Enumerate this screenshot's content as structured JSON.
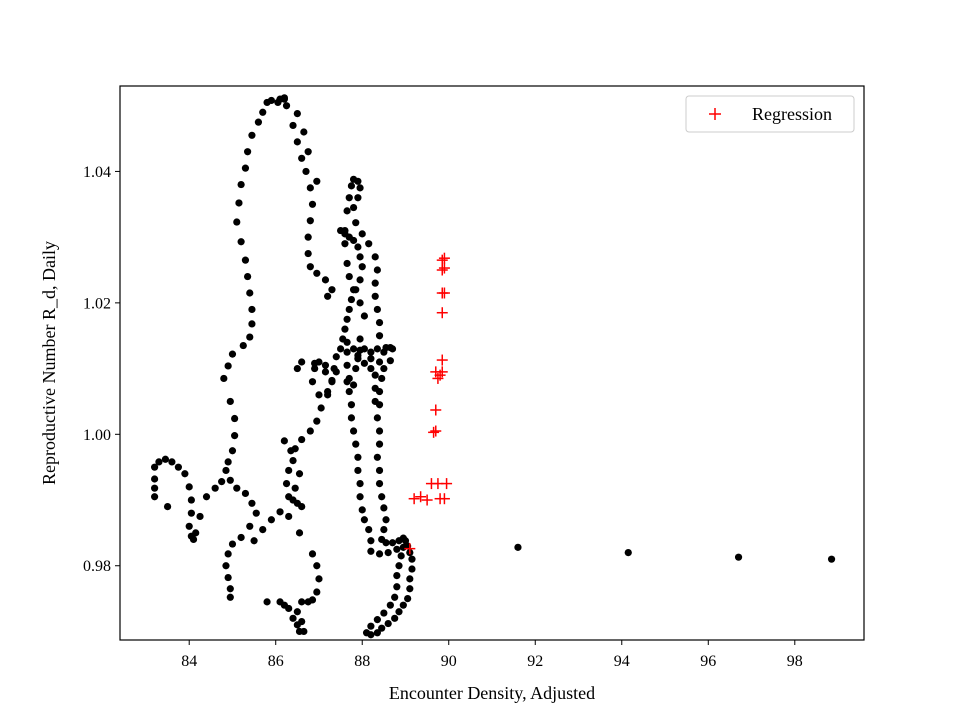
{
  "chart_data": {
    "type": "scatter",
    "title": "",
    "xlabel": "Encounter Density, Adjusted",
    "ylabel": "Reproductive Number R_d, Daily",
    "xlim": [
      82.4,
      99.6
    ],
    "ylim": [
      0.9687,
      1.053
    ],
    "x_ticks": [
      84,
      86,
      88,
      90,
      92,
      94,
      96,
      98
    ],
    "y_ticks": [
      0.98,
      1.0,
      1.02,
      1.04
    ],
    "x_tick_labels": [
      "84",
      "86",
      "88",
      "90",
      "92",
      "94",
      "96",
      "98"
    ],
    "y_tick_labels": [
      "0.98",
      "1.00",
      "1.02",
      "1.04"
    ],
    "grid": false,
    "legend_position": "top-right",
    "legend": [
      "Regression"
    ],
    "series": [
      {
        "marker": "dot",
        "color": "#000000",
        "points": [
          [
            86.1,
            1.051
          ],
          [
            86.2,
            1.0512
          ],
          [
            85.9,
            1.0508
          ],
          [
            85.8,
            1.0505
          ],
          [
            85.7,
            1.049
          ],
          [
            85.6,
            1.0475
          ],
          [
            85.45,
            1.0455
          ],
          [
            85.35,
            1.043
          ],
          [
            85.3,
            1.0405
          ],
          [
            85.2,
            1.038
          ],
          [
            85.15,
            1.0352
          ],
          [
            85.1,
            1.0323
          ],
          [
            85.2,
            1.0293
          ],
          [
            85.3,
            1.0265
          ],
          [
            85.35,
            1.024
          ],
          [
            85.4,
            1.0215
          ],
          [
            85.45,
            1.019
          ],
          [
            85.45,
            1.0168
          ],
          [
            85.4,
            1.0148
          ],
          [
            85.25,
            1.0135
          ],
          [
            85.0,
            1.0122
          ],
          [
            84.9,
            1.0104
          ],
          [
            84.8,
            1.0085
          ],
          [
            84.95,
            1.005
          ],
          [
            85.05,
            1.0024
          ],
          [
            85.05,
            0.9998
          ],
          [
            85.0,
            0.9975
          ],
          [
            84.9,
            0.9958
          ],
          [
            84.85,
            0.9945
          ],
          [
            84.95,
            0.993
          ],
          [
            85.1,
            0.9918
          ],
          [
            85.3,
            0.991
          ],
          [
            85.45,
            0.9895
          ],
          [
            85.55,
            0.988
          ],
          [
            85.4,
            0.986
          ],
          [
            85.2,
            0.9843
          ],
          [
            85.0,
            0.9833
          ],
          [
            84.9,
            0.9818
          ],
          [
            84.85,
            0.98
          ],
          [
            84.9,
            0.9782
          ],
          [
            84.95,
            0.9765
          ],
          [
            84.95,
            0.9752
          ],
          [
            83.2,
            0.995
          ],
          [
            83.2,
            0.9932
          ],
          [
            83.2,
            0.9918
          ],
          [
            83.2,
            0.9905
          ],
          [
            83.3,
            0.9958
          ],
          [
            83.45,
            0.9962
          ],
          [
            83.6,
            0.9958
          ],
          [
            83.75,
            0.995
          ],
          [
            83.9,
            0.994
          ],
          [
            84.0,
            0.992
          ],
          [
            84.05,
            0.99
          ],
          [
            84.05,
            0.988
          ],
          [
            84.0,
            0.986
          ],
          [
            84.05,
            0.9845
          ],
          [
            84.1,
            0.984
          ],
          [
            84.15,
            0.985
          ],
          [
            84.25,
            0.9875
          ],
          [
            84.4,
            0.9905
          ],
          [
            84.6,
            0.9918
          ],
          [
            84.75,
            0.9928
          ],
          [
            83.5,
            0.989
          ],
          [
            86.1,
            0.9745
          ],
          [
            86.2,
            0.974
          ],
          [
            86.3,
            0.9735
          ],
          [
            86.4,
            0.972
          ],
          [
            86.5,
            0.971
          ],
          [
            86.55,
            0.97
          ],
          [
            86.65,
            0.97
          ],
          [
            86.6,
            0.9715
          ],
          [
            86.5,
            0.973
          ],
          [
            86.6,
            0.9745
          ],
          [
            86.75,
            0.9745
          ],
          [
            86.85,
            0.9748
          ],
          [
            86.95,
            0.976
          ],
          [
            87.0,
            0.978
          ],
          [
            86.95,
            0.98
          ],
          [
            86.85,
            0.9818
          ],
          [
            86.55,
            0.985
          ],
          [
            86.3,
            0.9875
          ],
          [
            86.1,
            0.9882
          ],
          [
            85.9,
            0.987
          ],
          [
            85.7,
            0.9855
          ],
          [
            85.5,
            0.9838
          ],
          [
            85.8,
            0.9745
          ],
          [
            86.4,
            0.996
          ],
          [
            86.3,
            0.9945
          ],
          [
            86.25,
            0.9925
          ],
          [
            86.3,
            0.9905
          ],
          [
            86.4,
            0.99
          ],
          [
            86.5,
            0.9895
          ],
          [
            86.6,
            0.989
          ],
          [
            86.45,
            0.9918
          ],
          [
            86.55,
            0.994
          ],
          [
            86.35,
            0.9975
          ],
          [
            86.2,
            0.999
          ],
          [
            86.45,
            0.9978
          ],
          [
            86.6,
            0.9992
          ],
          [
            86.8,
            1.0005
          ],
          [
            86.95,
            1.002
          ],
          [
            87.05,
            1.004
          ],
          [
            87.2,
            1.006
          ],
          [
            87.3,
            1.008
          ],
          [
            87.15,
            1.0095
          ],
          [
            86.9,
            1.0108
          ],
          [
            86.6,
            1.011
          ],
          [
            86.5,
            1.01
          ],
          [
            87.2,
            1.021
          ],
          [
            87.3,
            1.022
          ],
          [
            87.15,
            1.0235
          ],
          [
            86.95,
            1.0245
          ],
          [
            86.8,
            1.0255
          ],
          [
            86.75,
            1.0275
          ],
          [
            86.75,
            1.03
          ],
          [
            86.8,
            1.0325
          ],
          [
            86.85,
            1.035
          ],
          [
            86.8,
            1.0375
          ],
          [
            86.7,
            1.04
          ],
          [
            86.6,
            1.042
          ],
          [
            86.5,
            1.0445
          ],
          [
            86.4,
            1.047
          ],
          [
            86.25,
            1.05
          ],
          [
            86.05,
            1.0505
          ],
          [
            86.2,
            1.051
          ],
          [
            86.5,
            1.0488
          ],
          [
            86.65,
            1.046
          ],
          [
            86.75,
            1.043
          ],
          [
            86.95,
            1.0385
          ],
          [
            87.5,
            1.031
          ],
          [
            87.6,
            1.0305
          ],
          [
            87.7,
            1.03
          ],
          [
            87.8,
            1.0295
          ],
          [
            87.9,
            1.0285
          ],
          [
            87.95,
            1.027
          ],
          [
            88.0,
            1.0255
          ],
          [
            87.95,
            1.0235
          ],
          [
            87.85,
            1.022
          ],
          [
            87.75,
            1.0205
          ],
          [
            87.7,
            1.019
          ],
          [
            87.65,
            1.0175
          ],
          [
            87.6,
            1.016
          ],
          [
            87.55,
            1.0145
          ],
          [
            87.5,
            1.013
          ],
          [
            87.4,
            1.0118
          ],
          [
            87.35,
            1.01
          ],
          [
            87.3,
            1.0082
          ],
          [
            87.2,
            1.0065
          ],
          [
            87.0,
            1.006
          ],
          [
            86.85,
            1.008
          ],
          [
            86.9,
            1.01
          ],
          [
            87.0,
            1.011
          ],
          [
            87.15,
            1.0105
          ],
          [
            87.4,
            1.0095
          ],
          [
            87.65,
            1.008
          ],
          [
            87.8,
            1.0075
          ],
          [
            87.85,
            1.01
          ],
          [
            87.9,
            1.012
          ],
          [
            87.95,
            1.0145
          ],
          [
            88.05,
            1.018
          ],
          [
            87.95,
            1.02
          ],
          [
            87.8,
            1.022
          ],
          [
            87.7,
            1.024
          ],
          [
            87.65,
            1.026
          ],
          [
            87.6,
            1.029
          ],
          [
            87.6,
            1.031
          ],
          [
            87.65,
            1.034
          ],
          [
            87.7,
            1.036
          ],
          [
            87.75,
            1.0378
          ],
          [
            87.8,
            1.0388
          ],
          [
            87.9,
            1.0385
          ],
          [
            87.95,
            1.0375
          ],
          [
            87.9,
            1.036
          ],
          [
            87.8,
            1.0345
          ],
          [
            87.85,
            1.0322
          ],
          [
            88.0,
            1.0305
          ],
          [
            88.15,
            1.029
          ],
          [
            88.3,
            1.027
          ],
          [
            88.35,
            1.025
          ],
          [
            88.3,
            1.023
          ],
          [
            88.3,
            1.021
          ],
          [
            88.35,
            1.019
          ],
          [
            88.4,
            1.017
          ],
          [
            88.4,
            1.015
          ],
          [
            88.35,
            1.013
          ],
          [
            88.2,
            1.0125
          ],
          [
            88.05,
            1.013
          ],
          [
            87.95,
            1.0128
          ],
          [
            88.2,
            1.0115
          ],
          [
            88.4,
            1.011
          ],
          [
            88.5,
            1.0125
          ],
          [
            88.55,
            1.0132
          ],
          [
            88.65,
            1.0132
          ],
          [
            88.7,
            1.013
          ],
          [
            88.65,
            1.0112
          ],
          [
            88.5,
            1.01
          ],
          [
            88.45,
            1.0085
          ],
          [
            88.4,
            1.0065
          ],
          [
            88.4,
            1.0045
          ],
          [
            88.35,
            1.0025
          ],
          [
            88.4,
            1.0005
          ],
          [
            88.4,
            0.9985
          ],
          [
            88.35,
            0.9965
          ],
          [
            88.4,
            0.9945
          ],
          [
            88.4,
            0.9925
          ],
          [
            88.45,
            0.9905
          ],
          [
            88.5,
            0.9888
          ],
          [
            88.55,
            0.987
          ],
          [
            88.5,
            0.9855
          ],
          [
            88.45,
            0.984
          ],
          [
            88.55,
            0.9835
          ],
          [
            88.7,
            0.9835
          ],
          [
            88.85,
            0.9838
          ],
          [
            88.95,
            0.9842
          ],
          [
            89.05,
            0.983
          ],
          [
            89.1,
            0.982
          ],
          [
            89.15,
            0.981
          ],
          [
            89.15,
            0.9795
          ],
          [
            89.1,
            0.978
          ],
          [
            89.1,
            0.9765
          ],
          [
            89.05,
            0.975
          ],
          [
            88.95,
            0.974
          ],
          [
            88.85,
            0.973
          ],
          [
            88.75,
            0.972
          ],
          [
            88.6,
            0.9712
          ],
          [
            88.45,
            0.9705
          ],
          [
            88.35,
            0.9698
          ],
          [
            88.2,
            0.9695
          ],
          [
            88.1,
            0.9698
          ],
          [
            88.2,
            0.9708
          ],
          [
            88.35,
            0.9718
          ],
          [
            88.5,
            0.9728
          ],
          [
            88.65,
            0.974
          ],
          [
            88.75,
            0.9752
          ],
          [
            88.8,
            0.9768
          ],
          [
            88.8,
            0.9785
          ],
          [
            88.85,
            0.98
          ],
          [
            88.9,
            0.9815
          ],
          [
            88.95,
            0.9828
          ],
          [
            89.0,
            0.9838
          ],
          [
            88.8,
            0.9825
          ],
          [
            88.6,
            0.982
          ],
          [
            88.4,
            0.9818
          ],
          [
            88.2,
            0.9822
          ],
          [
            88.2,
            0.9838
          ],
          [
            88.15,
            0.9855
          ],
          [
            88.05,
            0.987
          ],
          [
            88.0,
            0.9885
          ],
          [
            87.95,
            0.9905
          ],
          [
            87.95,
            0.9925
          ],
          [
            87.9,
            0.9945
          ],
          [
            87.9,
            0.9965
          ],
          [
            87.85,
            0.9985
          ],
          [
            87.8,
            1.0005
          ],
          [
            87.75,
            1.0025
          ],
          [
            87.75,
            1.0045
          ],
          [
            87.7,
            1.0065
          ],
          [
            87.7,
            1.0085
          ],
          [
            87.65,
            1.0105
          ],
          [
            87.65,
            1.0125
          ],
          [
            87.65,
            1.014
          ],
          [
            87.8,
            1.013
          ],
          [
            87.9,
            1.0115
          ],
          [
            88.05,
            1.0108
          ],
          [
            88.2,
            1.01
          ],
          [
            88.3,
            1.009
          ],
          [
            88.3,
            1.007
          ],
          [
            88.3,
            1.005
          ],
          [
            91.6,
            0.9828
          ],
          [
            94.15,
            0.982
          ],
          [
            96.7,
            0.9813
          ],
          [
            98.85,
            0.981
          ]
        ]
      },
      {
        "name": "Regression",
        "marker": "plus",
        "color": "#ff0000",
        "points": [
          [
            89.1,
            0.9826
          ],
          [
            89.2,
            0.9902
          ],
          [
            89.35,
            0.9905
          ],
          [
            89.5,
            0.99
          ],
          [
            89.6,
            0.9925
          ],
          [
            89.75,
            0.9925
          ],
          [
            89.8,
            0.9902
          ],
          [
            89.9,
            0.9902
          ],
          [
            89.95,
            0.9925
          ],
          [
            89.65,
            1.0003
          ],
          [
            89.7,
            1.0037
          ],
          [
            89.75,
            1.0085
          ],
          [
            89.8,
            1.009
          ],
          [
            89.85,
            1.0095
          ],
          [
            89.7,
            1.0095
          ],
          [
            89.85,
            1.0113
          ],
          [
            89.85,
            1.0185
          ],
          [
            89.85,
            1.0215
          ],
          [
            89.9,
            1.0215
          ],
          [
            89.85,
            1.025
          ],
          [
            89.9,
            1.0253
          ],
          [
            89.85,
            1.0265
          ],
          [
            89.9,
            1.0268
          ],
          [
            89.7,
            1.0005
          ]
        ]
      }
    ]
  }
}
